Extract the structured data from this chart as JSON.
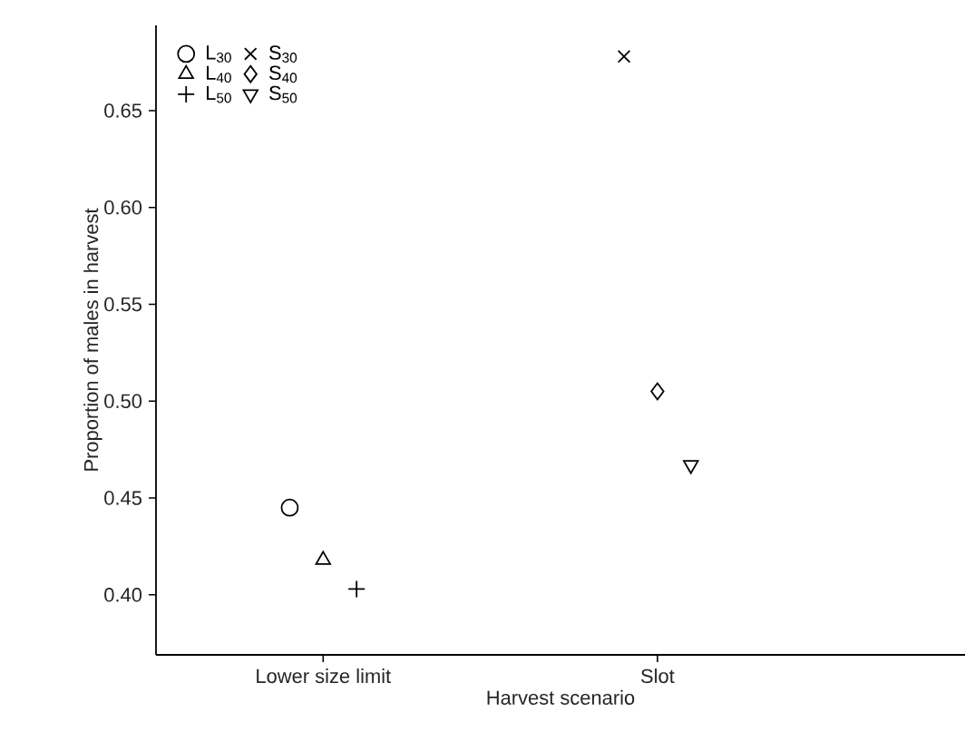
{
  "chart_data": {
    "type": "scatter",
    "xlabel": "Harvest scenario",
    "ylabel": "Proportion of males in harvest",
    "categories": [
      "Lower size limit",
      "Slot"
    ],
    "series": [
      {
        "name": "L$_{30}$",
        "color": "#000000",
        "marker": "circle",
        "values": [
          0.445,
          null
        ]
      },
      {
        "name": "L$_{40}$",
        "color": "#000000",
        "marker": "triangle",
        "values": [
          0.418,
          null
        ]
      },
      {
        "name": "L$_{50}$",
        "color": "#000000",
        "marker": "plus",
        "values": [
          0.403,
          null
        ]
      },
      {
        "name": "S$_{30}$",
        "color": "#000000",
        "marker": "cross",
        "values": [
          null,
          0.678
        ]
      },
      {
        "name": "S$_{40}$",
        "color": "#000000",
        "marker": "diamond",
        "values": [
          null,
          0.505
        ]
      },
      {
        "name": "S$_{50}$",
        "color": "#000000",
        "marker": "triangle-down",
        "values": [
          null,
          0.467
        ]
      }
    ],
    "ylim": [
      0.369,
      0.694
    ],
    "yticks": [
      {
        "value": 0.4,
        "label": "0.40"
      },
      0.45,
      {
        "value": 0.5,
        "label": "0.50"
      },
      0.55,
      {
        "value": 0.6,
        "label": "0.60"
      },
      0.65
    ],
    "grid": false,
    "legend": "top left"
  }
}
